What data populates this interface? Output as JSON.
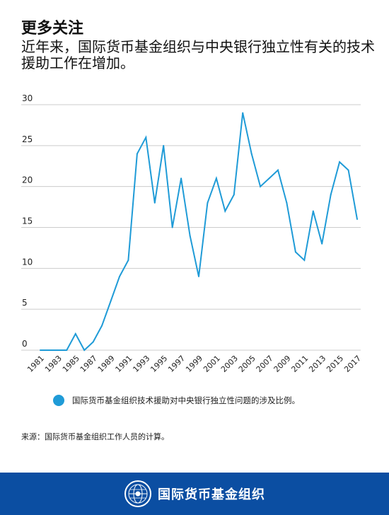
{
  "title": "更多关注",
  "subtitle": "近年来，国际货币基金组织与中央银行独立性有关的技术援助工作在增加。",
  "source": "来源：国际货币基金组织工作人员的计算。",
  "footer": {
    "org_name": "国际货币基金组织"
  },
  "colors": {
    "line": "#1f9bd7",
    "footer_bg": "#0b4ea2",
    "grid": "#cccccc"
  },
  "chart_data": {
    "type": "line",
    "title": "",
    "xlabel": "",
    "ylabel": "",
    "ylim": [
      0,
      30
    ],
    "yticks": [
      0,
      5,
      10,
      15,
      20,
      25,
      30
    ],
    "x_tick_labels": [
      "1981",
      "1983",
      "1985",
      "1987",
      "1989",
      "1991",
      "1993",
      "1995",
      "1997",
      "1999",
      "2001",
      "2003",
      "2005",
      "2007",
      "2009",
      "2011",
      "2013",
      "2015",
      "2017"
    ],
    "grid": "horizontal",
    "legend": "bottom",
    "x": [
      1981,
      1982,
      1983,
      1984,
      1985,
      1986,
      1987,
      1988,
      1989,
      1990,
      1991,
      1992,
      1993,
      1994,
      1995,
      1996,
      1997,
      1998,
      1999,
      2000,
      2001,
      2002,
      2003,
      2004,
      2005,
      2006,
      2007,
      2008,
      2009,
      2010,
      2011,
      2012,
      2013,
      2014,
      2015,
      2016,
      2017
    ],
    "series": [
      {
        "name": "国际货币基金组织技术援助对中央银行独立性问题的涉及比例。",
        "values": [
          0,
          0,
          0,
          0,
          2,
          0,
          1,
          3,
          6,
          9,
          11,
          24,
          26,
          18,
          25,
          15,
          21,
          14,
          9,
          18,
          21,
          17,
          19,
          29,
          24,
          20,
          21,
          22,
          18,
          12,
          11,
          17,
          13,
          19,
          23,
          22,
          16
        ]
      }
    ]
  }
}
